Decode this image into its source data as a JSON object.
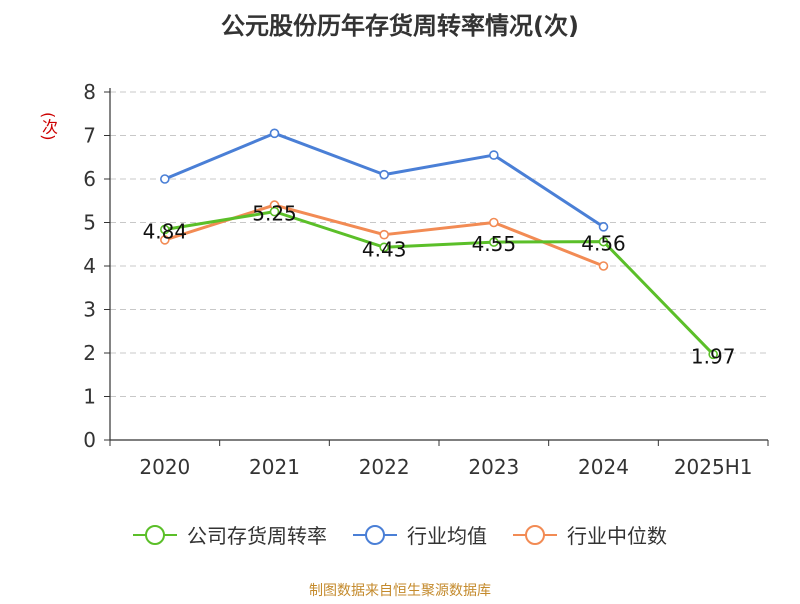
{
  "chart_data": {
    "type": "line",
    "title": "公元股份历年存货周转率情况(次)",
    "ylabel": "(次)",
    "xlabel": "",
    "categories": [
      "2020",
      "2021",
      "2022",
      "2023",
      "2024",
      "2025H1"
    ],
    "ylim": [
      0,
      8
    ],
    "yticks": [
      0,
      1,
      2,
      3,
      4,
      5,
      6,
      7,
      8
    ],
    "grid": true,
    "legend_position": "bottom",
    "series": [
      {
        "name": "公司存货周转率",
        "color": "#5bbf29",
        "values": [
          4.84,
          5.25,
          4.43,
          4.55,
          4.56,
          1.97
        ],
        "data_labels": [
          "4.84",
          "5.25",
          "4.43",
          "4.55",
          "4.56",
          "1.97"
        ]
      },
      {
        "name": "行业均值",
        "color": "#4a7fd6",
        "values": [
          6.0,
          7.05,
          6.1,
          6.55,
          4.9,
          null
        ]
      },
      {
        "name": "行业中位数",
        "color": "#f28b54",
        "values": [
          4.6,
          5.4,
          4.72,
          5.0,
          4.0,
          null
        ]
      }
    ]
  },
  "source": "制图数据来自恒生聚源数据库"
}
